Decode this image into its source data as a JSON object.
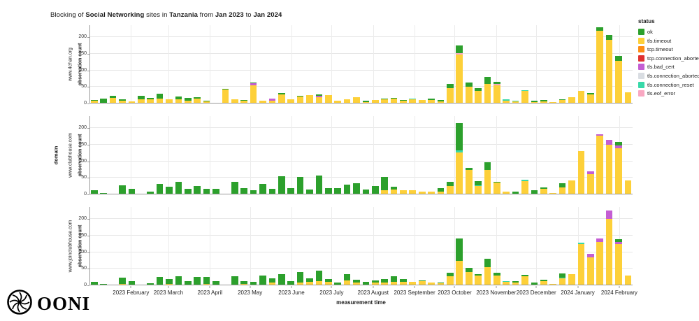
{
  "title": {
    "runs": [
      {
        "text": "Blocking of ",
        "bold": false
      },
      {
        "text": "Social Networking",
        "bold": true
      },
      {
        "text": " sites in ",
        "bold": false
      },
      {
        "text": "Tanzania",
        "bold": true
      },
      {
        "text": " from ",
        "bold": false
      },
      {
        "text": "Jan 2023",
        "bold": true
      },
      {
        "text": " to ",
        "bold": false
      },
      {
        "text": "Jan 2024",
        "bold": true
      }
    ]
  },
  "layout": {
    "x_axis_label": "measurement time",
    "y_axis_label": "observation count",
    "domain_axis_label": "domain"
  },
  "legend": {
    "title": "status",
    "items": [
      {
        "label": "ok",
        "color": "#2ca02c"
      },
      {
        "label": "tls.timeout",
        "color": "#fdd039"
      },
      {
        "label": "tcp.timeout",
        "color": "#fd8d14"
      },
      {
        "label": "tcp.connection_aborted",
        "color": "#e03131"
      },
      {
        "label": "tls.bad_cert",
        "color": "#c45ed3"
      },
      {
        "label": "tls.connection_aborted",
        "color": "#d9dde2"
      },
      {
        "label": "tls.connection_reset",
        "color": "#38d9a9"
      },
      {
        "label": "tls.eof_error",
        "color": "#f9a8c2"
      }
    ]
  },
  "logo": {
    "wordmark": "OONI"
  },
  "chart_data": {
    "type": "bar",
    "stacked": true,
    "title": "Blocking of Social Networking sites in Tanzania from Jan 2023 to Jan 2024",
    "xlabel": "measurement time",
    "ylabel": "observation count",
    "facet_axis_label": "domain",
    "grid": true,
    "legend_position": "right",
    "y_ticks": [
      0,
      50,
      100,
      150,
      200
    ],
    "ylim": [
      0,
      236
    ],
    "bar_interval": "weekly",
    "weeks": 58,
    "total_days": 406,
    "stack_order": [
      "tcp.timeout",
      "tcp.connection_aborted",
      "tls.timeout",
      "tls.bad_cert",
      "tls.connection_aborted",
      "tls.connection_reset",
      "tls.eof_error",
      "ok"
    ],
    "colors": {
      "ok": "#2ca02c",
      "tls.timeout": "#fdd039",
      "tcp.timeout": "#fd8d14",
      "tcp.connection_aborted": "#e03131",
      "tls.bad_cert": "#c45ed3",
      "tls.connection_aborted": "#d9dde2",
      "tls.connection_reset": "#38d9a9",
      "tls.eof_error": "#f9a8c2"
    },
    "month_ticks": [
      {
        "label": "2023 February",
        "day": 31
      },
      {
        "label": "2023 March",
        "day": 59
      },
      {
        "label": "2023 April",
        "day": 90
      },
      {
        "label": "2023 May",
        "day": 120
      },
      {
        "label": "2023 June",
        "day": 151
      },
      {
        "label": "2023 July",
        "day": 181
      },
      {
        "label": "2023 August",
        "day": 212
      },
      {
        "label": "2023 September",
        "day": 243
      },
      {
        "label": "2023 October",
        "day": 273
      },
      {
        "label": "2023 November",
        "day": 304
      },
      {
        "label": "2023 December",
        "day": 334
      },
      {
        "label": "2024 January",
        "day": 365
      },
      {
        "label": "2024 February",
        "day": 396
      }
    ],
    "panels": [
      {
        "domain": "www.4chan.org",
        "bars": [
          {
            "tls.timeout": 8,
            "ok": 2
          },
          {
            "ok": 14
          },
          {
            "tls.timeout": 17,
            "ok": 6
          },
          {
            "tls.timeout": 8,
            "ok": 4
          },
          {
            "tls.timeout": 7
          },
          {
            "tls.timeout": 12,
            "ok": 12
          },
          {
            "tls.timeout": 13,
            "ok": 4
          },
          {
            "tls.timeout": 14,
            "ok": 16
          },
          {
            "tls.timeout": 13
          },
          {
            "tls.timeout": 12,
            "ok": 9
          },
          {
            "tls.timeout": 8,
            "ok": 8
          },
          {
            "tls.timeout": 14,
            "ok": 4
          },
          {
            "tls.timeout": 6,
            "ok": 3
          },
          {},
          {
            "tls.timeout": 43,
            "ok": 2
          },
          {
            "tls.timeout": 13
          },
          {
            "tls.timeout": 8,
            "ok": 3
          },
          {
            "tls.timeout": 55,
            "tls.bad_cert": 6,
            "ok": 2
          },
          {
            "tls.timeout": 8
          },
          {
            "tls.timeout": 8,
            "tls.bad_cert": 6
          },
          {
            "tls.timeout": 28,
            "ok": 3
          },
          {
            "tls.timeout": 13
          },
          {
            "tls.timeout": 22,
            "ok": 2
          },
          {
            "tls.timeout": 25
          },
          {
            "tls.timeout": 20,
            "tls.bad_cert": 4,
            "ok": 4
          },
          {
            "tls.timeout": 25
          },
          {
            "tls.timeout": 8
          },
          {
            "tls.timeout": 13
          },
          {
            "tls.timeout": 18,
            "ok": 2
          },
          {
            "tls.timeout": 5,
            "ok": 3
          },
          {
            "tls.timeout": 10
          },
          {
            "tls.timeout": 12,
            "ok": 3
          },
          {
            "tls.timeout": 15,
            "ok": 2
          },
          {
            "tls.timeout": 8,
            "ok": 3
          },
          {
            "tls.timeout": 12,
            "tls.connection_reset": 2
          },
          {
            "tls.timeout": 10
          },
          {
            "tls.timeout": 10,
            "ok": 4
          },
          {
            "tls.timeout": 6,
            "ok": 4
          },
          {
            "tls.timeout": 47,
            "ok": 13
          },
          {
            "tls.timeout": 147,
            "tls.eof_error": 5,
            "ok": 23
          },
          {
            "tls.timeout": 50,
            "ok": 14
          },
          {
            "tls.timeout": 37,
            "ok": 10
          },
          {
            "tls.timeout": 60,
            "ok": 21
          },
          {
            "tls.timeout": 55,
            "tls.eof_error": 3,
            "ok": 8
          },
          {
            "tls.timeout": 8,
            "tls.connection_reset": 4
          },
          {
            "tls.timeout": 6,
            "tls.connection_reset": 3
          },
          {
            "tls.timeout": 38,
            "tls.connection_reset": 3
          },
          {
            "tls.timeout": 4,
            "ok": 4
          },
          {
            "tls.timeout": 7,
            "ok": 4
          },
          {
            "tls.timeout": 4
          },
          {
            "tls.timeout": 10,
            "ok": 3
          },
          {
            "tls.timeout": 20
          },
          {
            "tls.timeout": 37
          },
          {
            "tls.timeout": 27,
            "ok": 5
          },
          {
            "tls.timeout": 220,
            "ok": 9
          },
          {
            "tls.timeout": 192,
            "ok": 15
          },
          {
            "tls.timeout": 128,
            "ok": 15
          },
          {
            "tls.timeout": 33
          }
        ]
      },
      {
        "domain": "www.clubhouse.com",
        "bars": [
          {
            "ok": 12
          },
          {
            "ok": 4
          },
          {},
          {
            "ok": 28
          },
          {
            "ok": 16
          },
          {},
          {
            "ok": 9
          },
          {
            "ok": 32
          },
          {
            "tls.timeout": 3,
            "ok": 20
          },
          {
            "ok": 38
          },
          {
            "ok": 17
          },
          {
            "ok": 26
          },
          {
            "ok": 16
          },
          {
            "ok": 16
          },
          {},
          {
            "ok": 37
          },
          {
            "ok": 18
          },
          {
            "ok": 12
          },
          {
            "ok": 31
          },
          {
            "ok": 16
          },
          {
            "ok": 55
          },
          {
            "ok": 20
          },
          {
            "ok": 52
          },
          {
            "ok": 15
          },
          {
            "tls.timeout": 3,
            "ok": 53
          },
          {
            "ok": 18
          },
          {
            "ok": 18
          },
          {
            "ok": 30
          },
          {
            "ok": 33
          },
          {
            "ok": 15
          },
          {
            "ok": 25
          },
          {
            "tls.timeout": 12,
            "ok": 40
          },
          {
            "tls.timeout": 15,
            "ok": 8
          },
          {
            "tcp.timeout": 2,
            "tls.timeout": 10
          },
          {
            "tls.timeout": 12
          },
          {
            "tls.timeout": 8
          },
          {
            "tcp.timeout": 2,
            "tls.timeout": 6
          },
          {
            "tcp.timeout": 2,
            "tls.timeout": 7,
            "ok": 10
          },
          {
            "tls.timeout": 25,
            "ok": 12
          },
          {
            "tls.timeout": 127,
            "tls.connection_reset": 5,
            "ok": 82
          },
          {
            "tls.timeout": 74,
            "ok": 7
          },
          {
            "tls.timeout": 25,
            "tls.connection_reset": 2,
            "ok": 13
          },
          {
            "tls.timeout": 73,
            "ok": 25
          },
          {
            "tls.timeout": 35,
            "ok": 4
          },
          {
            "tls.timeout": 8
          },
          {
            "ok": 8
          },
          {
            "tls.timeout": 40,
            "tls.connection_reset": 4
          },
          {
            "tls.timeout": 3,
            "ok": 9
          },
          {
            "tcp.timeout": 2,
            "tls.timeout": 14,
            "ok": 6
          },
          {
            "tls.timeout": 5
          },
          {
            "tls.timeout": 22,
            "ok": 12
          },
          {
            "tls.timeout": 42
          },
          {
            "tls.timeout": 130
          },
          {
            "tls.timeout": 62,
            "tls.bad_cert": 8
          },
          {
            "tls.timeout": 178,
            "tls.bad_cert": 3
          },
          {
            "tls.timeout": 150,
            "tls.bad_cert": 15
          },
          {
            "tls.timeout": 140,
            "tls.bad_cert": 8,
            "ok": 10
          },
          {
            "tls.timeout": 42
          }
        ]
      },
      {
        "domain": "www.joinclubhouse.com",
        "bars": [
          {
            "ok": 10
          },
          {
            "ok": 4
          },
          {},
          {
            "tls.timeout": 5,
            "ok": 18
          },
          {
            "ok": 13
          },
          {},
          {
            "ok": 7
          },
          {
            "ok": 25
          },
          {
            "tls.timeout": 4,
            "ok": 14
          },
          {
            "ok": 28
          },
          {
            "tls.timeout": 3,
            "ok": 10
          },
          {
            "ok": 25
          },
          {
            "tls.timeout": 5,
            "ok": 20
          },
          {
            "ok": 12
          },
          {},
          {
            "ok": 28
          },
          {
            "tls.timeout": 5,
            "ok": 7
          },
          {
            "ok": 10
          },
          {
            "ok": 30
          },
          {
            "tls.timeout": 8,
            "ok": 14
          },
          {
            "tls.timeout": 3,
            "ok": 30
          },
          {
            "ok": 12
          },
          {
            "tls.timeout": 8,
            "ok": 32
          },
          {
            "tls.timeout": 10,
            "ok": 12
          },
          {
            "tls.timeout": 12,
            "ok": 32
          },
          {
            "tls.timeout": 10,
            "ok": 10
          },
          {
            "ok": 8
          },
          {
            "tls.timeout": 15,
            "ok": 18
          },
          {
            "tls.timeout": 8,
            "ok": 8
          },
          {
            "ok": 10
          },
          {
            "tls.timeout": 8,
            "ok": 6
          },
          {
            "tls.timeout": 8,
            "ok": 10
          },
          {
            "tls.timeout": 10,
            "ok": 18
          },
          {
            "tls.timeout": 10,
            "ok": 8
          },
          {
            "tls.timeout": 10
          },
          {
            "tls.timeout": 13,
            "ok": 2
          },
          {
            "tls.timeout": 8
          },
          {
            "tls.timeout": 6,
            "ok": 2
          },
          {
            "tls.timeout": 28,
            "ok": 10
          },
          {
            "tls.timeout": 74,
            "ok": 67
          },
          {
            "tls.timeout": 40,
            "ok": 12
          },
          {
            "tls.timeout": 30,
            "ok": 3
          },
          {
            "tls.timeout": 55,
            "ok": 25
          },
          {
            "tls.timeout": 30,
            "ok": 8
          },
          {
            "tls.timeout": 10,
            "tls.connection_reset": 3
          },
          {
            "tls.timeout": 8,
            "ok": 5
          },
          {
            "tls.timeout": 28,
            "ok": 4
          },
          {
            "ok": 8
          },
          {
            "tls.timeout": 12,
            "ok": 5
          },
          {
            "tls.timeout": 5
          },
          {
            "tls.timeout": 22,
            "tls.connection_reset": 2,
            "ok": 12
          },
          {
            "tls.timeout": 33
          },
          {
            "tls.timeout": 125,
            "tls.connection_reset": 3
          },
          {
            "tls.timeout": 85,
            "tls.bad_cert": 10
          },
          {
            "tls.timeout": 130,
            "tls.bad_cert": 12
          },
          {
            "tls.timeout": 200,
            "tls.bad_cert": 25
          },
          {
            "tls.timeout": 125,
            "tls.bad_cert": 6,
            "ok": 8
          },
          {
            "tls.timeout": 30
          }
        ]
      }
    ]
  }
}
